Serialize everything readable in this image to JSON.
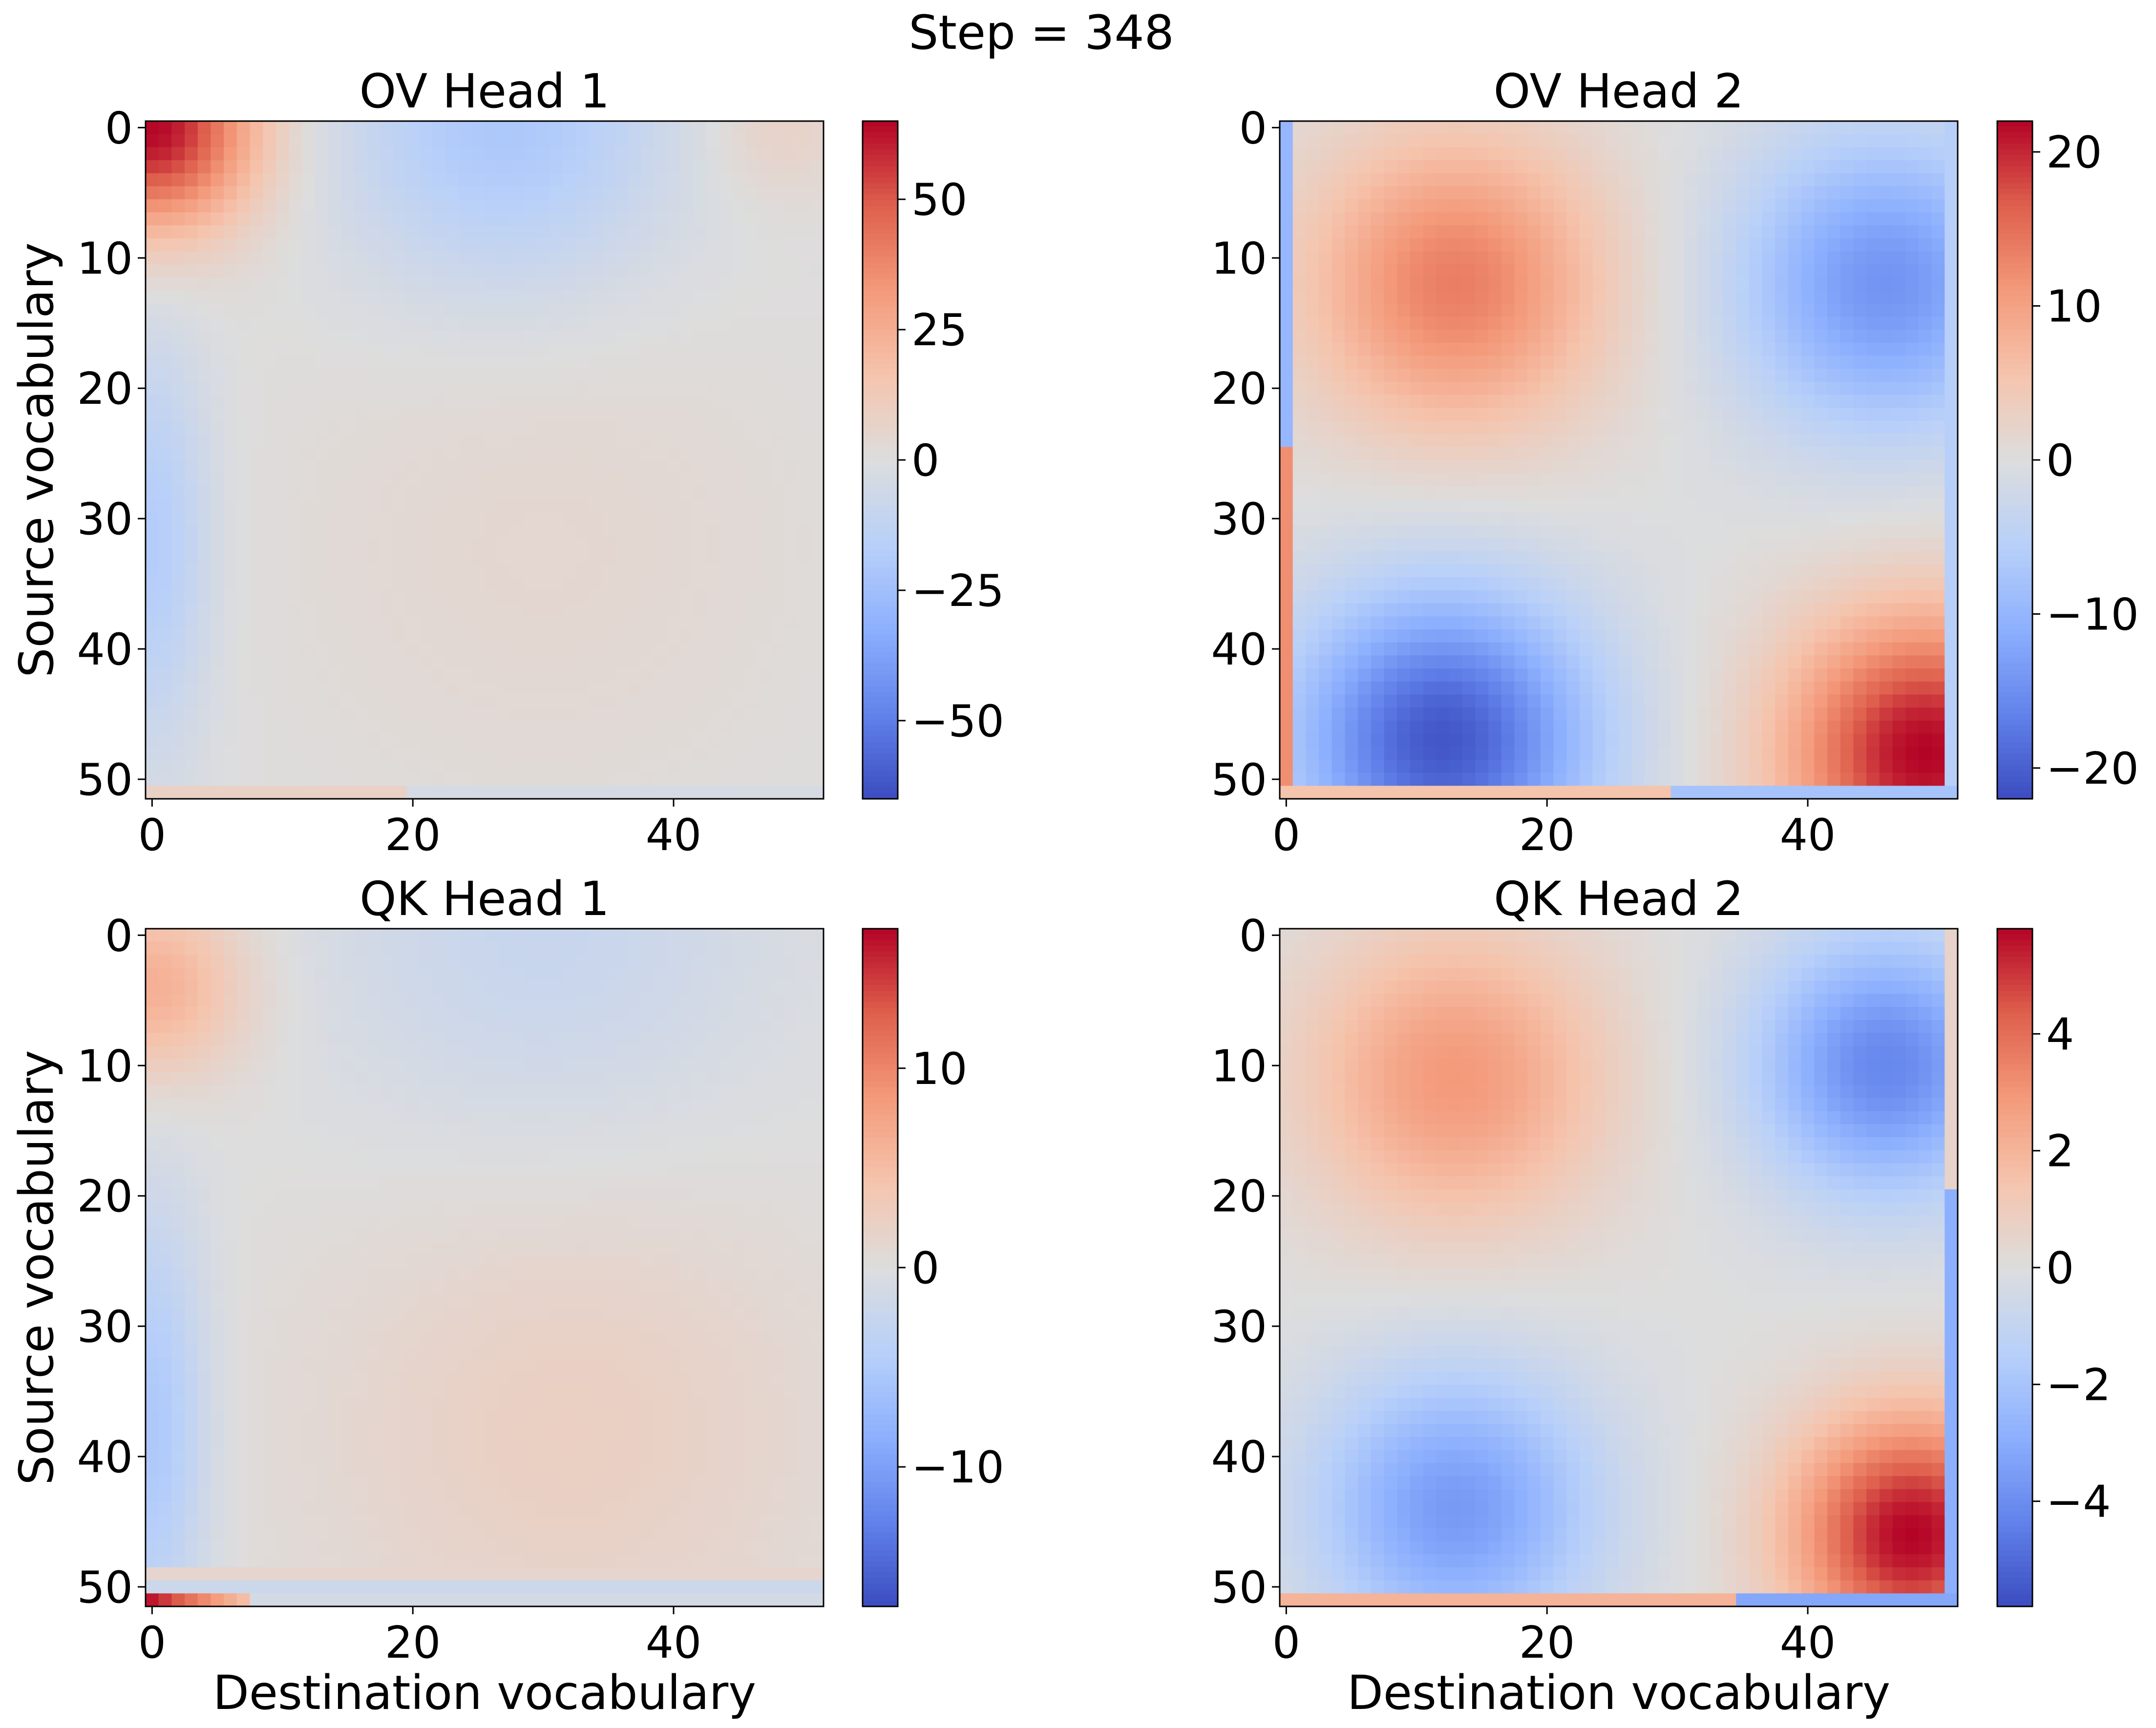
{
  "figure_title": "Step = 348",
  "chart_data": [
    {
      "type": "heatmap",
      "title": "OV Head 1",
      "xlabel": "",
      "ylabel": "Source vocabulary",
      "n": 52,
      "x_ticks": [
        "0",
        "20",
        "40"
      ],
      "y_ticks": [
        "0",
        "10",
        "20",
        "30",
        "40",
        "50"
      ],
      "colormap": "coolwarm",
      "vmin": -65,
      "vmax": 65,
      "colorbar_ticks": [
        50,
        25,
        0,
        -25,
        -50
      ],
      "colorbar_tick_labels": [
        "50",
        "25",
        "0",
        "−25",
        "−50"
      ],
      "pattern": "head1",
      "amplitude": 65
    },
    {
      "type": "heatmap",
      "title": "OV Head 2",
      "xlabel": "",
      "ylabel": "",
      "n": 52,
      "x_ticks": [
        "0",
        "20",
        "40"
      ],
      "y_ticks": [
        "0",
        "10",
        "20",
        "30",
        "40",
        "50"
      ],
      "colormap": "coolwarm",
      "vmin": -22,
      "vmax": 22,
      "colorbar_ticks": [
        20,
        10,
        0,
        -10,
        -20
      ],
      "colorbar_tick_labels": [
        "20",
        "10",
        "0",
        "−10",
        "−20"
      ],
      "pattern": "head2",
      "amplitude": 22
    },
    {
      "type": "heatmap",
      "title": "QK Head 1",
      "xlabel": "Destination vocabulary",
      "ylabel": "Source vocabulary",
      "n": 52,
      "x_ticks": [
        "0",
        "20",
        "40"
      ],
      "y_ticks": [
        "0",
        "10",
        "20",
        "30",
        "40",
        "50"
      ],
      "colormap": "coolwarm",
      "vmin": -17,
      "vmax": 17,
      "colorbar_ticks": [
        10,
        0,
        -10
      ],
      "colorbar_tick_labels": [
        "10",
        "0",
        "−10"
      ],
      "pattern": "qk1",
      "amplitude": 17
    },
    {
      "type": "heatmap",
      "title": "QK Head 2",
      "xlabel": "Destination vocabulary",
      "ylabel": "",
      "n": 52,
      "x_ticks": [
        "0",
        "20",
        "40"
      ],
      "y_ticks": [
        "0",
        "10",
        "20",
        "30",
        "40",
        "50"
      ],
      "colormap": "coolwarm",
      "vmin": -5.8,
      "vmax": 5.8,
      "colorbar_ticks": [
        4,
        2,
        0,
        -2,
        -4
      ],
      "colorbar_tick_labels": [
        "4",
        "2",
        "0",
        "−2",
        "−4"
      ],
      "pattern": "qk2",
      "amplitude": 5.8
    }
  ]
}
